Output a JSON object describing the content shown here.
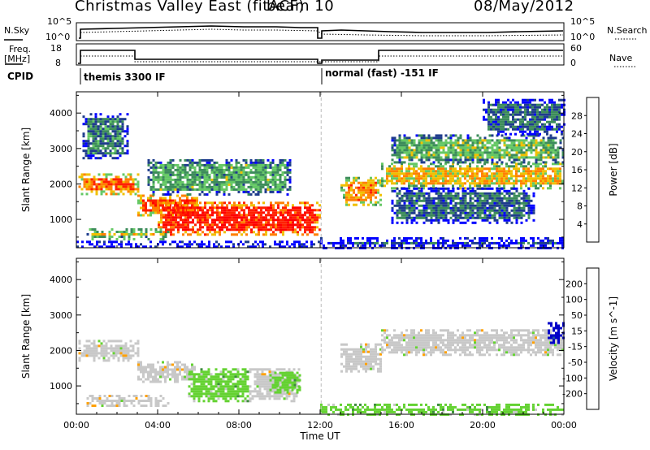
{
  "header": {
    "radar": "Christmas Valley East (fitACF)",
    "beam": "beam 10",
    "date": "08/May/2012"
  },
  "top_panels": {
    "nsky_label": "N.Sky",
    "nsky_ticks": [
      "10^5",
      "10^0"
    ],
    "nsearch_label": "N.Search",
    "nsearch_ticks": [
      "10^5",
      "10^0"
    ],
    "freq_label": "Freq.",
    "freq_unit": "[MHz]",
    "freq_ticks": [
      "18",
      "8"
    ],
    "nave_label": "Nave",
    "nave_ticks": [
      "60",
      "0"
    ],
    "cpid_label": "CPID",
    "cpid_segments": [
      "themis 3300 IF",
      "normal (fast) -151 IF"
    ]
  },
  "chart_data": [
    {
      "type": "heatmap",
      "name": "power-panel",
      "ylabel": "Slant Range [km]",
      "yticks": [
        1000,
        2000,
        3000,
        4000
      ],
      "ylim": [
        200,
        4600
      ],
      "xlim": [
        0,
        24
      ],
      "xticks": [
        0,
        4,
        8,
        12,
        16,
        20,
        24
      ],
      "colorbar": {
        "label": "Power [dB]",
        "ticks": [
          "4",
          "8",
          "12",
          "16",
          "20",
          "24",
          "28"
        ],
        "colors": [
          "#0000ff",
          "#1e3c8c",
          "#3c8c5a",
          "#64c864",
          "#f0c000",
          "#ff8000",
          "#ff2000",
          "#ff0000"
        ]
      },
      "features": [
        {
          "t0": 0.1,
          "t1": 3.0,
          "r0": 1700,
          "r1": 2300,
          "level": 0.75
        },
        {
          "t0": 3.0,
          "t1": 6.0,
          "r0": 1100,
          "r1": 1700,
          "level": 0.8
        },
        {
          "t0": 4.0,
          "t1": 12.0,
          "r0": 600,
          "r1": 1500,
          "level": 0.9
        },
        {
          "t0": 0.5,
          "t1": 4.5,
          "r0": 450,
          "r1": 750,
          "level": 0.55
        },
        {
          "t0": 3.5,
          "t1": 10.5,
          "r0": 1700,
          "r1": 2700,
          "level": 0.35
        },
        {
          "t0": 0.3,
          "t1": 2.5,
          "r0": 2700,
          "r1": 4000,
          "level": 0.25
        },
        {
          "t0": 13.0,
          "t1": 15.0,
          "r0": 1400,
          "r1": 2200,
          "level": 0.7
        },
        {
          "t0": 15.0,
          "t1": 24.0,
          "r0": 1900,
          "r1": 2600,
          "level": 0.6
        },
        {
          "t0": 15.5,
          "t1": 24.0,
          "r0": 2600,
          "r1": 3400,
          "level": 0.4
        },
        {
          "t0": 15.5,
          "t1": 22.5,
          "r0": 900,
          "r1": 1900,
          "level": 0.2
        },
        {
          "t0": 20.0,
          "t1": 24.0,
          "r0": 3400,
          "r1": 4400,
          "level": 0.2
        },
        {
          "t0": 12.0,
          "t1": 24.0,
          "r0": 200,
          "r1": 500,
          "level": 0.15
        },
        {
          "t0": 0.0,
          "t1": 12.0,
          "r0": 200,
          "r1": 400,
          "level": 0.2
        }
      ]
    },
    {
      "type": "heatmap",
      "name": "velocity-panel",
      "ylabel": "Slant Range [km]",
      "yticks": [
        1000,
        2000,
        3000,
        4000
      ],
      "ylim": [
        200,
        4600
      ],
      "xlim": [
        0,
        24
      ],
      "xticks": [
        0,
        4,
        8,
        12,
        16,
        20,
        24
      ],
      "xticklabels": [
        "00:00",
        "04:00",
        "08:00",
        "12:00",
        "16:00",
        "20:00",
        "00:00"
      ],
      "xlabel": "Time UT",
      "colorbar": {
        "label": "Velocity [m s^-1]",
        "ticks": [
          "200",
          "100",
          "50",
          "15",
          "-15",
          "-50",
          "-100",
          "-200"
        ],
        "colors": [
          "#0000c8",
          "#1e50a0",
          "#3c8c3c",
          "#64d232",
          "#c8c8c8",
          "#ffa000",
          "#ff6400",
          "#ff3000",
          "#ff0000"
        ]
      },
      "features": [
        {
          "t0": 0.1,
          "t1": 3.0,
          "r0": 1700,
          "r1": 2300,
          "level": 4
        },
        {
          "t0": 3.0,
          "t1": 6.0,
          "r0": 1100,
          "r1": 1700,
          "level": 4
        },
        {
          "t0": 5.5,
          "t1": 8.5,
          "r0": 600,
          "r1": 1500,
          "level": 3
        },
        {
          "t0": 8.5,
          "t1": 11.0,
          "r0": 600,
          "r1": 1500,
          "level": 4
        },
        {
          "t0": 9.5,
          "t1": 11.0,
          "r0": 800,
          "r1": 1400,
          "level": 3
        },
        {
          "t0": 0.5,
          "t1": 4.5,
          "r0": 450,
          "r1": 750,
          "level": 4
        },
        {
          "t0": 13.0,
          "t1": 15.0,
          "r0": 1400,
          "r1": 2200,
          "level": 4
        },
        {
          "t0": 15.0,
          "t1": 24.0,
          "r0": 1900,
          "r1": 2600,
          "level": 4
        },
        {
          "t0": 23.2,
          "t1": 24.0,
          "r0": 2200,
          "r1": 2800,
          "level": 0
        },
        {
          "t0": 12.0,
          "t1": 24.0,
          "r0": 200,
          "r1": 500,
          "level": 3
        }
      ]
    }
  ]
}
